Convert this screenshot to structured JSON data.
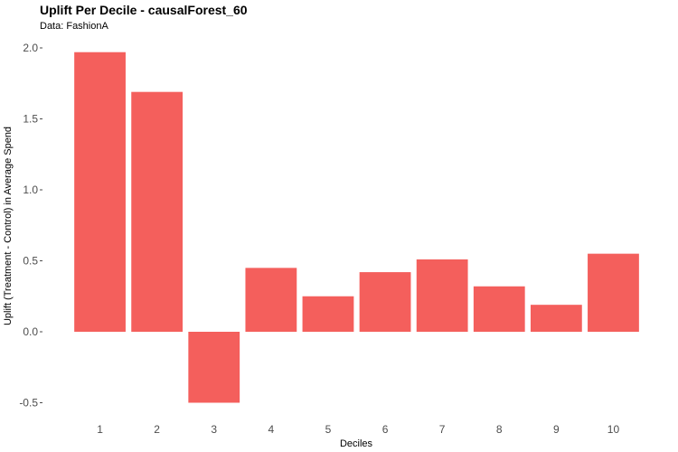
{
  "chart_data": {
    "type": "bar",
    "title": "Uplift Per Decile - causalForest_60",
    "subtitle": "Data: FashionA",
    "xlabel": "Deciles",
    "ylabel": "Uplift (Treatment - Control) in Average Spend",
    "categories": [
      "1",
      "2",
      "3",
      "4",
      "5",
      "6",
      "7",
      "8",
      "9",
      "10"
    ],
    "values": [
      1.97,
      1.69,
      -0.5,
      0.45,
      0.25,
      0.42,
      0.51,
      0.32,
      0.19,
      0.55
    ],
    "ylim": [
      -0.55,
      2.05
    ],
    "yticks": [
      -0.5,
      0.0,
      0.5,
      1.0,
      1.5,
      2.0
    ],
    "ytick_labels": [
      "-0.5",
      "0.0",
      "0.5",
      "1.0",
      "1.5",
      "2.0"
    ],
    "grid": false,
    "bar_color": "#f45f5c",
    "background": "#ffffff"
  }
}
